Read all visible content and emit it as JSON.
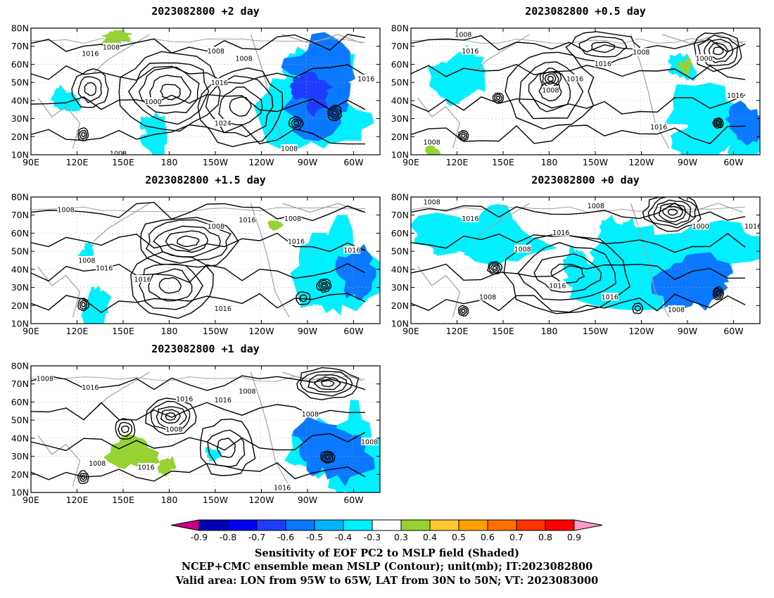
{
  "panels": [
    {
      "id": "p2",
      "title": "2023082800 +2 day",
      "contour_labels": [
        "1008",
        "1016",
        "1008",
        "1008",
        "1016",
        "1000",
        "1024",
        "1016",
        "1008",
        "1008"
      ]
    },
    {
      "id": "p05",
      "title": "2023082800 +0.5 day",
      "contour_labels": [
        "1008",
        "1016",
        "1008",
        "1016",
        "1000",
        "1016",
        "1008",
        "1016",
        "1016",
        "1008"
      ]
    },
    {
      "id": "p15",
      "title": "2023082800 +1.5 day",
      "contour_labels": [
        "1008",
        "1008",
        "1016",
        "1008",
        "1016",
        "1016",
        "1008",
        "1016",
        "1016",
        "1016"
      ]
    },
    {
      "id": "p0",
      "title": "2023082800 +0 day",
      "contour_labels": [
        "1008",
        "1008",
        "1016",
        "1016",
        "1008",
        "1000",
        "1016",
        "1016",
        "1016",
        "1008",
        "1008"
      ]
    },
    {
      "id": "p1",
      "title": "2023082800 +1 day",
      "contour_labels": [
        "1008",
        "1016",
        "1016",
        "1016",
        "1008",
        "1008",
        "1008",
        "1008",
        "1016",
        "1008",
        "1016"
      ]
    }
  ],
  "axes": {
    "lat_labels": [
      "80N",
      "70N",
      "60N",
      "50N",
      "40N",
      "30N",
      "20N",
      "10N"
    ],
    "lon_labels": [
      "90E",
      "120E",
      "150E",
      "180",
      "150W",
      "120W",
      "90W",
      "60W"
    ]
  },
  "colorbar": {
    "ticks": [
      "-0.9",
      "-0.8",
      "-0.7",
      "-0.6",
      "-0.5",
      "-0.4",
      "-0.3",
      "0.3",
      "0.4",
      "0.5",
      "0.6",
      "0.7",
      "0.8",
      "0.9"
    ],
    "colors": [
      "#0000b4",
      "#0000f0",
      "#1e3cff",
      "#0a78ff",
      "#00b4ff",
      "#00f0ff",
      "#ffffff",
      "#96d232",
      "#ffc832",
      "#ffa000",
      "#ff6e00",
      "#ff3200",
      "#ff0000"
    ],
    "under_color": "#c8008c",
    "over_color": "#ff9bc8"
  },
  "footer": {
    "line1": "Sensitivity of EOF PC2 to MSLP field (Shaded)",
    "line2": "NCEP+CMC ensemble mean MSLP (Contour); unit(mb); IT:2023082800",
    "line3": "Valid area: LON from 95W to 65W, LAT from 30N to 50N; VT: 2023083000"
  }
}
